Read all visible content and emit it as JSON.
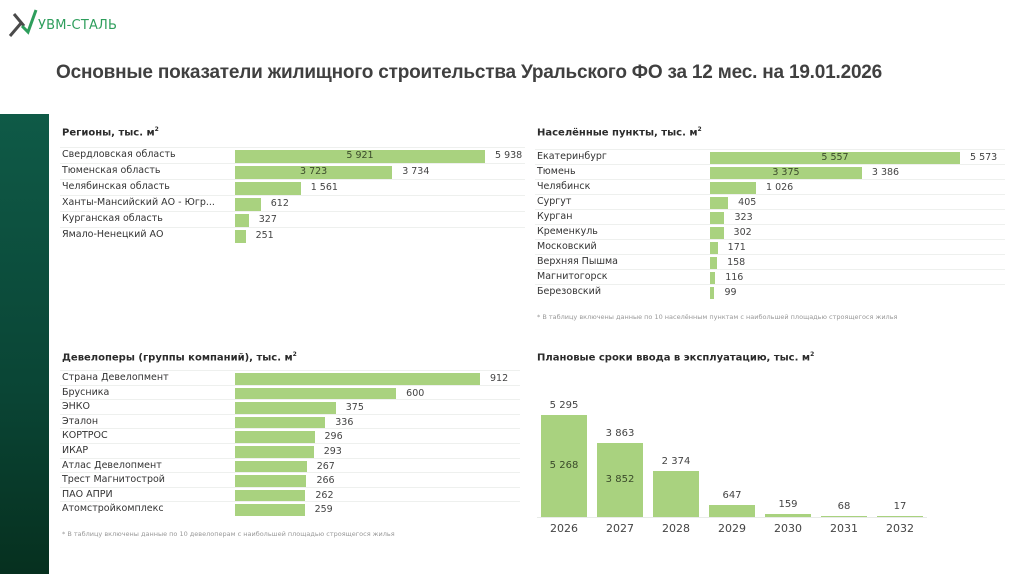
{
  "logo": {
    "text": "УВМ-СТАЛЬ",
    "icon": "x-logo-icon"
  },
  "header": {
    "title": "Основные показатели жилищного строительства Уральского ФО за 12 мес. на 19.01.2026"
  },
  "colors": {
    "bar": "#a9d27f",
    "sidebar": "#0a4535",
    "logo_green": "#2e9e5c"
  },
  "chart_data": [
    {
      "type": "bar",
      "orientation": "horizontal",
      "title": "Регионы, тыс. м²",
      "title_main": "Регионы, тыс. м",
      "categories": [
        "Свердловская область",
        "Тюменская область",
        "Челябинская область",
        "Ханты-Мансийский АО - Югр...",
        "Курганская область",
        "Ямало-Ненецкий АО"
      ],
      "values": [
        5938,
        3734,
        1561,
        612,
        327,
        251
      ],
      "value_labels": [
        "5 938",
        "3 734",
        "1 561",
        "612",
        "327",
        "251"
      ],
      "inner_values": [
        5921,
        3723,
        null,
        null,
        null,
        null
      ],
      "inner_labels": [
        "5 921",
        "3 723",
        "",
        "",
        "",
        ""
      ]
    },
    {
      "type": "bar",
      "orientation": "horizontal",
      "title": "Населённые пункты, тыс. м²",
      "title_main": "Населённые пункты, тыс. м",
      "categories": [
        "Екатеринбург",
        "Тюмень",
        "Челябинск",
        "Сургут",
        "Курган",
        "Кременкуль",
        "Московский",
        "Верхняя Пышма",
        "Магнитогорск",
        "Березовский"
      ],
      "values": [
        5573,
        3386,
        1026,
        405,
        323,
        302,
        171,
        158,
        116,
        99
      ],
      "value_labels": [
        "5 573",
        "3 386",
        "1 026",
        "405",
        "323",
        "302",
        "171",
        "158",
        "116",
        "99"
      ],
      "inner_values": [
        5557,
        3375,
        null,
        null,
        null,
        null,
        null,
        null,
        null,
        null
      ],
      "inner_labels": [
        "5 557",
        "3 375",
        "",
        "",
        "",
        "",
        "",
        "",
        "",
        ""
      ],
      "footnote": "* В таблицу включены данные по 10 населённым пунктам с наибольшей площадью строящегося жилья"
    },
    {
      "type": "bar",
      "orientation": "horizontal",
      "title": "Девелоперы (группы компаний), тыс. м²",
      "title_main": "Девелоперы (группы компаний), тыс. м",
      "categories": [
        "Страна Девелопмент",
        "Брусника",
        "ЭНКО",
        "Эталон",
        "КОРТРОС",
        "ИКАР",
        "Атлас Девелопмент",
        "Трест Магнитострой",
        "ПАО АПРИ",
        "Атомстройкомплекс"
      ],
      "values": [
        912,
        600,
        375,
        336,
        296,
        293,
        267,
        266,
        262,
        259
      ],
      "value_labels": [
        "912",
        "600",
        "375",
        "336",
        "296",
        "293",
        "267",
        "266",
        "262",
        "259"
      ],
      "footnote": "* В таблицу включены данные по 10 девелоперам с наибольшей площадью строящегося жилья"
    },
    {
      "type": "bar",
      "orientation": "vertical",
      "title": "Плановые сроки ввода в эксплуатацию, тыс. м²",
      "title_main": "Плановые сроки ввода в эксплуатацию, тыс. м",
      "categories": [
        "2026",
        "2027",
        "2028",
        "2029",
        "2030",
        "2031",
        "2032"
      ],
      "values": [
        5295,
        3863,
        2374,
        647,
        159,
        68,
        17
      ],
      "value_labels": [
        "5 295",
        "3 863",
        "2 374",
        "647",
        "159",
        "68",
        "17"
      ],
      "inner_values": [
        5268,
        3852,
        null,
        null,
        null,
        null,
        null
      ],
      "inner_labels": [
        "5 268",
        "3 852",
        "",
        "",
        "",
        "",
        ""
      ]
    }
  ]
}
